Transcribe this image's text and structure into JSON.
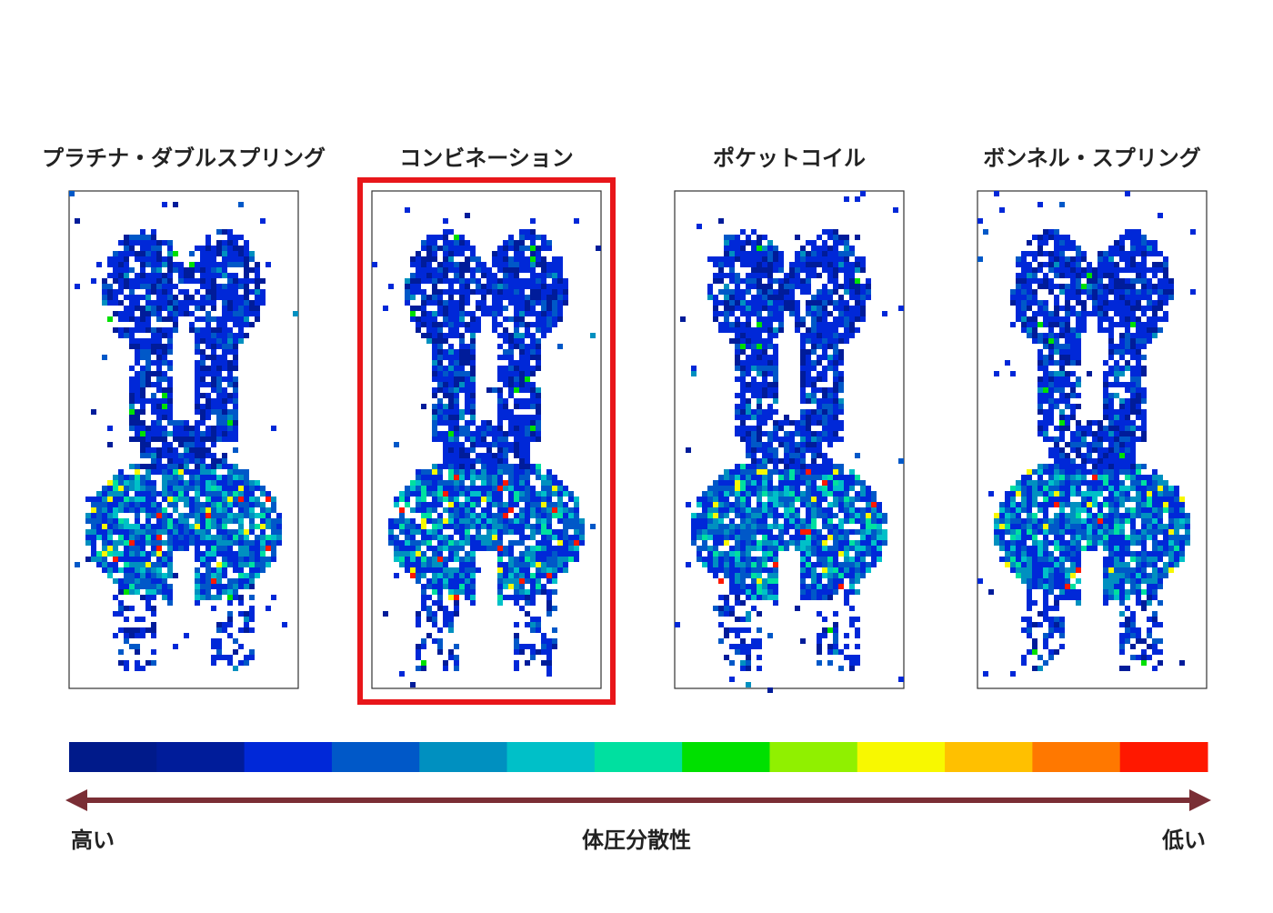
{
  "panels": [
    {
      "title": "プラチナ・ダブルスプリング",
      "highlight": false
    },
    {
      "title": "コンビネーション",
      "highlight": true
    },
    {
      "title": "ポケットコイル",
      "highlight": false
    },
    {
      "title": "ボンネル・スプリング",
      "highlight": false
    }
  ],
  "scale": {
    "colors": [
      "#001a8a",
      "#001c9a",
      "#0028d8",
      "#0058c8",
      "#0090c0",
      "#00c0c8",
      "#00e0a0",
      "#00e000",
      "#90f000",
      "#f8f800",
      "#ffc000",
      "#ff7800",
      "#ff1800"
    ],
    "left_label": "高い",
    "center_label": "体圧分散性",
    "right_label": "低い"
  }
}
